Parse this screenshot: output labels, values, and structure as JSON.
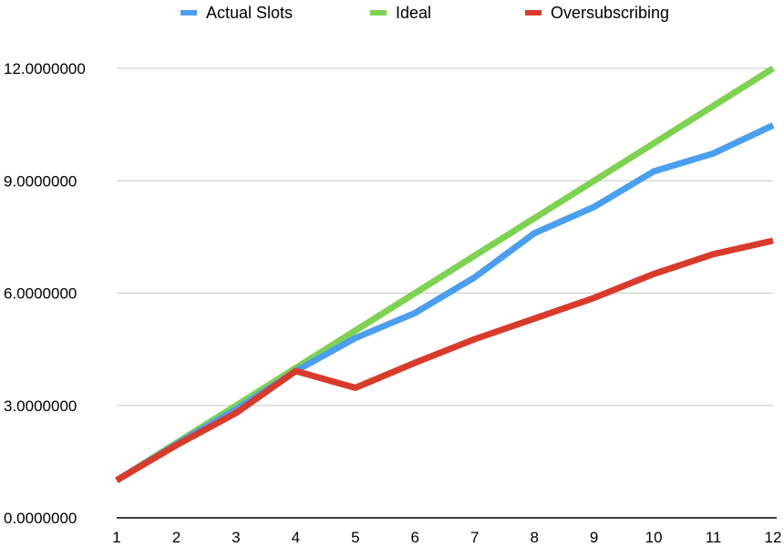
{
  "chart_data": {
    "type": "line",
    "x": [
      1,
      2,
      3,
      4,
      5,
      6,
      7,
      8,
      9,
      10,
      11,
      12
    ],
    "ylim": [
      0,
      12
    ],
    "yticks": [
      0,
      3,
      6,
      9,
      12
    ],
    "ytick_labels": [
      "0.0000000",
      "3.0000000",
      "6.0000000",
      "9.0000000",
      "12.0000000"
    ],
    "xtick_labels": [
      "1",
      "2",
      "3",
      "4",
      "5",
      "6",
      "7",
      "8",
      "9",
      "10",
      "11",
      "12"
    ],
    "grid": true,
    "legend_position": "top",
    "series": [
      {
        "name": "Actual Slots",
        "color": "#4a9ff0",
        "values": [
          1.0,
          1.97,
          2.9,
          3.92,
          4.8,
          5.47,
          6.42,
          7.6,
          8.3,
          9.25,
          9.73,
          10.48
        ]
      },
      {
        "name": "Ideal",
        "color": "#7dd34f",
        "values": [
          1,
          2,
          3,
          4,
          5,
          6,
          7,
          8,
          9,
          10,
          11,
          12
        ]
      },
      {
        "name": "Oversubscribing",
        "color": "#d93b2b",
        "values": [
          1.0,
          1.94,
          2.8,
          3.92,
          3.47,
          4.14,
          4.77,
          5.32,
          5.87,
          6.51,
          7.04,
          7.4
        ]
      }
    ]
  }
}
